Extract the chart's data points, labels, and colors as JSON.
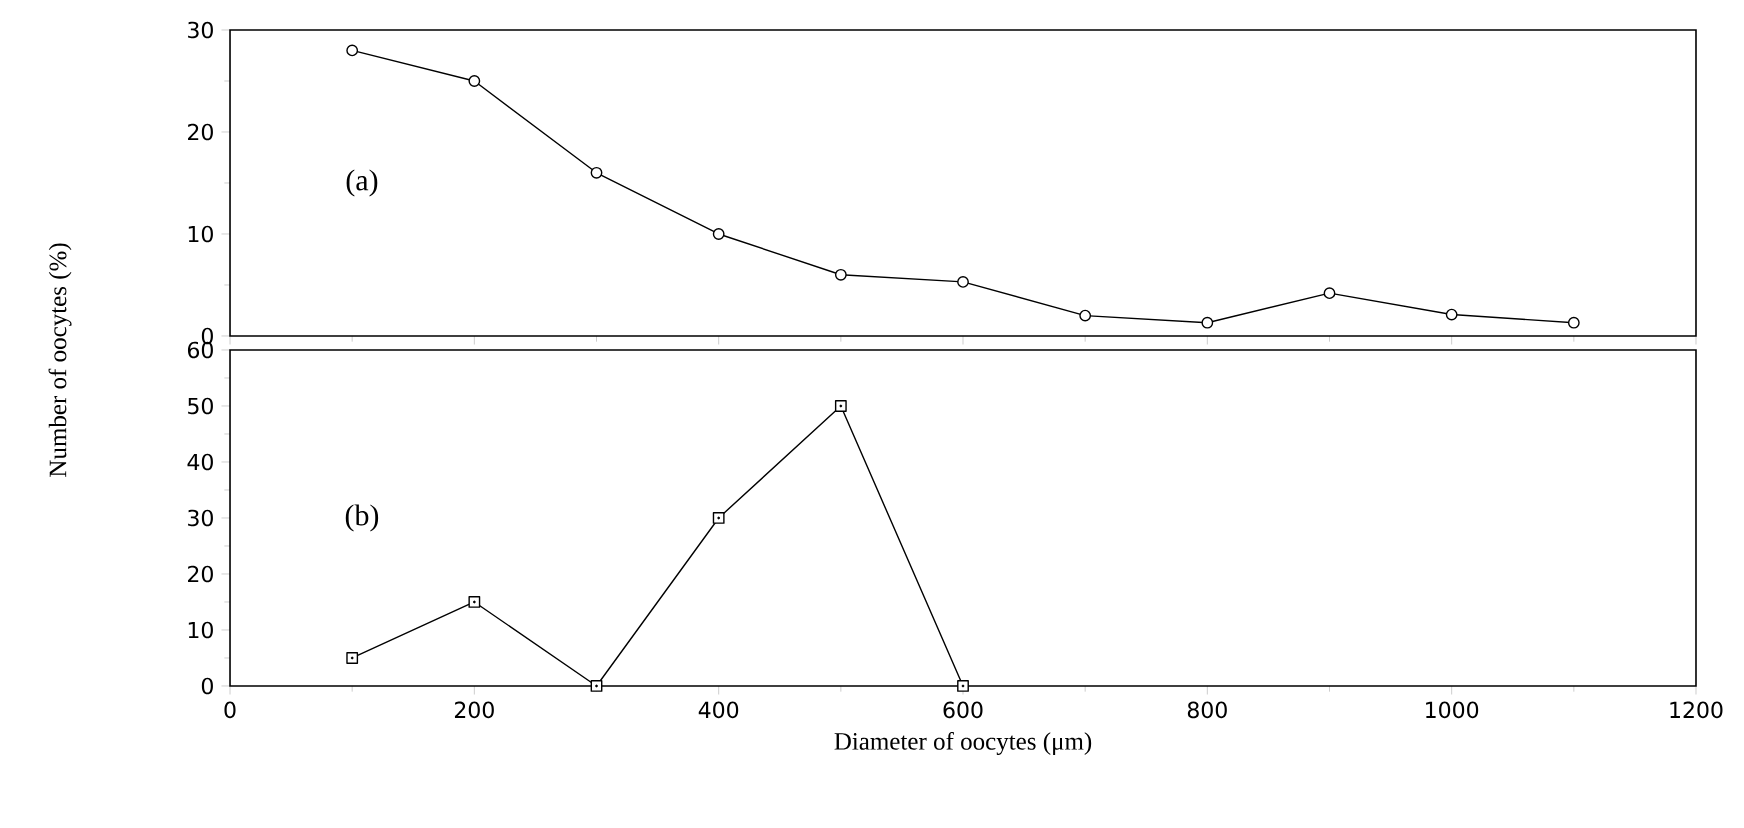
{
  "chart_data": [
    {
      "type": "line",
      "ylabel": "Number of oocytes (%)",
      "annotations": [
        "(a)"
      ],
      "x": [
        100,
        200,
        300,
        400,
        500,
        600,
        700,
        800,
        900,
        1000,
        1100
      ],
      "series": [
        {
          "color": "#000000",
          "values": [
            28,
            25,
            16,
            10,
            6,
            5.3,
            2,
            1.3,
            4.2,
            2.1,
            1.3
          ]
        }
      ],
      "xlim": [
        0,
        1200
      ],
      "xticks": [
        0,
        200,
        400,
        600,
        800,
        1000,
        1200
      ],
      "ylim": [
        0,
        30
      ],
      "yticks": [
        0,
        10,
        20,
        30
      ],
      "tick_labels": "y",
      "marker": "circle",
      "line_style": "solid"
    },
    {
      "type": "line",
      "xlabel": "Diameter of oocytes (μm)",
      "annotations": [
        "(b)"
      ],
      "x": [
        100,
        200,
        300,
        400,
        500,
        600
      ],
      "series": [
        {
          "color": "#000000",
          "values": [
            5,
            15,
            0,
            30,
            50,
            0
          ]
        }
      ],
      "xlim": [
        0,
        1200
      ],
      "xticks": [
        0,
        200,
        400,
        600,
        800,
        1000,
        1200
      ],
      "ylim": [
        0,
        60
      ],
      "yticks": [
        0,
        10,
        20,
        30,
        40,
        50,
        60
      ],
      "marker": "square",
      "line_style": "solid"
    }
  ]
}
